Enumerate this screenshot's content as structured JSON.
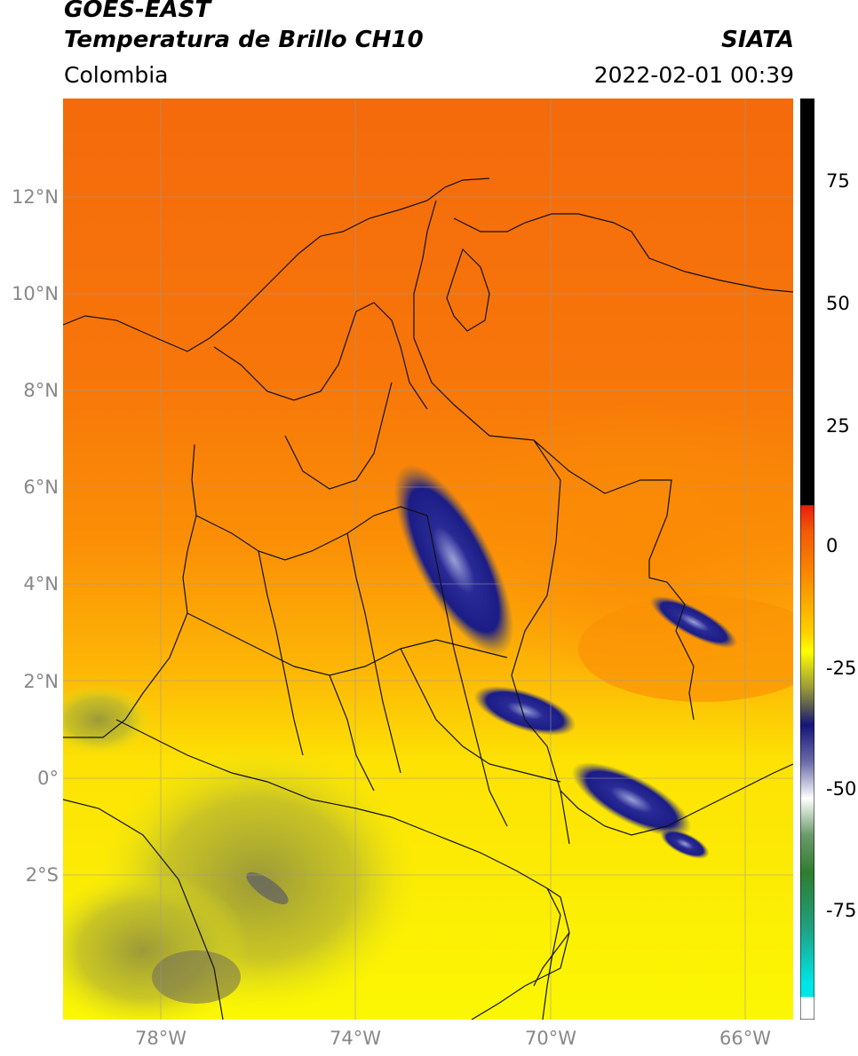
{
  "header": {
    "title_main": "GOES-EAST",
    "title_sub": "Temperatura de Brillo CH10",
    "brand": "SIATA",
    "region": "Colombia",
    "timestamp": "2022-02-01 00:39"
  },
  "axes": {
    "lat_labels": [
      "12°N",
      "10°N",
      "8°N",
      "6°N",
      "4°N",
      "2°N",
      "0°",
      "2°S"
    ],
    "lon_labels": [
      "78°W",
      "74°W",
      "70°W",
      "66°W"
    ]
  },
  "colorbar": {
    "labels": [
      "75",
      "50",
      "25",
      "0",
      "-25",
      "-50",
      "-75"
    ],
    "colors": {
      "black": "#000000",
      "red": "#e81e0e",
      "orange": "#fa8c00",
      "yellow": "#ffff00",
      "olive": "#9a9a3a",
      "navy": "#15157a",
      "white": "#ffffff",
      "green": "#2f7d2f",
      "cyan": "#00e5e5"
    }
  },
  "map_colors": {
    "north_orange": "#f46a0c",
    "mid_orange": "#fb8f06",
    "south_yellow": "#fbe904",
    "cold_cloud": "#1c1c86",
    "border": "#111111",
    "grid": "#9a9a9a"
  }
}
